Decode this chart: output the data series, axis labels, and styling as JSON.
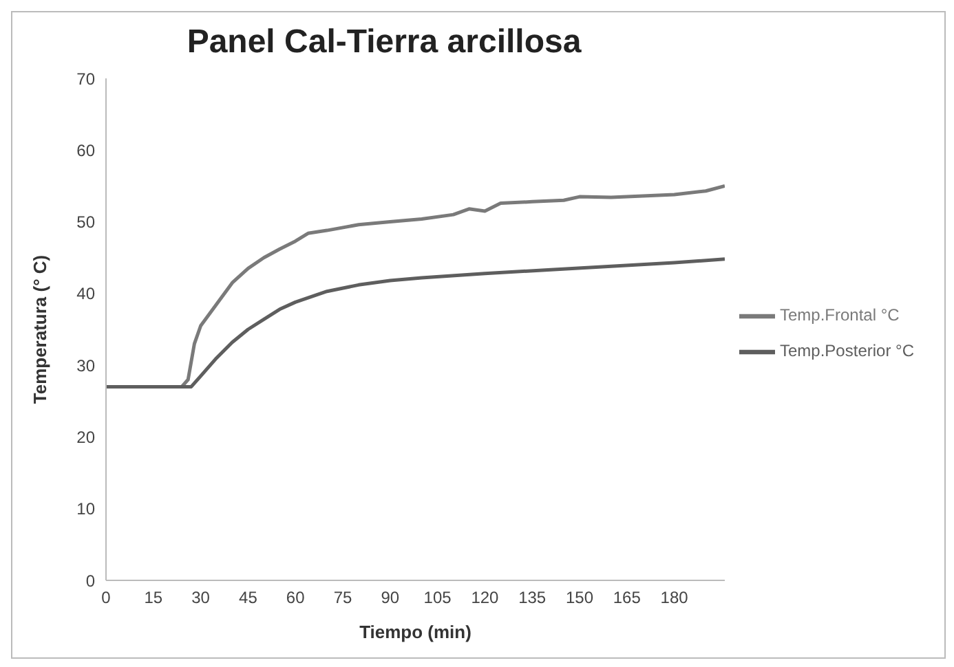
{
  "chart_data": {
    "type": "line",
    "title": "Panel Cal-Tierra arcillosa",
    "xlabel": "Tiempo (min)",
    "ylabel": "Temperatura (° C)",
    "series": [
      {
        "name": "Temp.Frontal °C",
        "color": "#7a7a7a",
        "x": [
          0,
          24,
          26,
          28,
          30,
          35,
          40,
          45,
          50,
          55,
          60,
          64,
          70,
          80,
          90,
          100,
          110,
          115,
          120,
          125,
          135,
          145,
          150,
          160,
          170,
          180,
          190,
          196
        ],
        "values": [
          27,
          27,
          28,
          33,
          35.5,
          38.5,
          41.5,
          43.5,
          45,
          46.2,
          47.3,
          48.4,
          48.8,
          49.6,
          50,
          50.4,
          51,
          51.8,
          51.5,
          52.6,
          52.8,
          53,
          53.5,
          53.4,
          53.6,
          53.8,
          54.3,
          55
        ]
      },
      {
        "name": "Temp.Posterior °C",
        "color": "#5e5e5e",
        "x": [
          0,
          27,
          30,
          35,
          40,
          45,
          50,
          55,
          60,
          70,
          80,
          90,
          100,
          120,
          140,
          160,
          180,
          196
        ],
        "values": [
          27,
          27,
          28.5,
          31,
          33.2,
          35,
          36.4,
          37.8,
          38.8,
          40.3,
          41.2,
          41.8,
          42.2,
          42.8,
          43.3,
          43.8,
          44.3,
          44.8
        ]
      }
    ],
    "xlim": [
      0,
      196
    ],
    "xticks": [
      0,
      15,
      30,
      45,
      60,
      75,
      90,
      105,
      120,
      135,
      150,
      165,
      180
    ],
    "ylim": [
      0,
      70
    ],
    "yticks": [
      0,
      10,
      20,
      30,
      40,
      50,
      60,
      70
    ],
    "grid": false,
    "legend": "right",
    "marker": "none",
    "line_style": "solid"
  }
}
